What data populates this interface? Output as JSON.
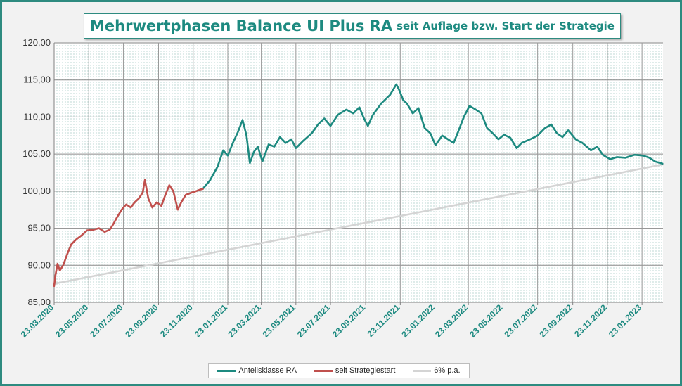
{
  "title": {
    "main": "Mehrwertphasen Balance UI Plus RA",
    "sub": "seit Auflage bzw. Start der Strategie"
  },
  "colors": {
    "frame": "#2e8b80",
    "fund": "#1d8a80",
    "start": "#c0504d",
    "trend": "#d4d4d4"
  },
  "chart_data": {
    "type": "line",
    "title": "Mehrwertphasen Balance UI Plus RA seit Auflage bzw. Start der Strategie",
    "xlabel": "",
    "ylabel": "",
    "ylim": [
      85,
      120
    ],
    "yticks": [
      "85,00",
      "90,00",
      "95,00",
      "100,00",
      "105,00",
      "110,00",
      "115,00",
      "120,00"
    ],
    "xticks": [
      "23.03.2020",
      "23.05.2020",
      "23.07.2020",
      "23.09.2020",
      "23.11.2020",
      "23.01.2021",
      "23.03.2021",
      "23.05.2021",
      "23.07.2021",
      "23.09.2021",
      "23.11.2021",
      "23.01.2022",
      "23.03.2022",
      "23.05.2022",
      "23.07.2022",
      "23.09.2022",
      "23.11.2022",
      "23.01.2023"
    ],
    "grid": true,
    "legend_position": "bottom",
    "series": [
      {
        "name": "Anteilsklasse RA",
        "points": [
          [
            "2020-12-10",
            100.3
          ],
          [
            "2020-12-23",
            101.5
          ],
          [
            "2021-01-05",
            103.3
          ],
          [
            "2021-01-15",
            105.5
          ],
          [
            "2021-01-23",
            104.8
          ],
          [
            "2021-02-01",
            106.5
          ],
          [
            "2021-02-10",
            108.0
          ],
          [
            "2021-02-18",
            109.6
          ],
          [
            "2021-02-25",
            107.5
          ],
          [
            "2021-03-03",
            103.8
          ],
          [
            "2021-03-10",
            105.3
          ],
          [
            "2021-03-17",
            106.0
          ],
          [
            "2021-03-25",
            104.0
          ],
          [
            "2021-04-05",
            106.3
          ],
          [
            "2021-04-15",
            106.0
          ],
          [
            "2021-04-25",
            107.3
          ],
          [
            "2021-05-05",
            106.5
          ],
          [
            "2021-05-15",
            107.0
          ],
          [
            "2021-05-23",
            105.8
          ],
          [
            "2021-06-05",
            106.8
          ],
          [
            "2021-06-20",
            107.8
          ],
          [
            "2021-07-01",
            109.0
          ],
          [
            "2021-07-12",
            109.8
          ],
          [
            "2021-07-23",
            108.8
          ],
          [
            "2021-08-05",
            110.3
          ],
          [
            "2021-08-20",
            111.0
          ],
          [
            "2021-09-01",
            110.5
          ],
          [
            "2021-09-12",
            111.3
          ],
          [
            "2021-09-20",
            109.8
          ],
          [
            "2021-09-27",
            108.8
          ],
          [
            "2021-10-05",
            110.2
          ],
          [
            "2021-10-20",
            111.8
          ],
          [
            "2021-11-05",
            113.0
          ],
          [
            "2021-11-16",
            114.4
          ],
          [
            "2021-11-22",
            113.5
          ],
          [
            "2021-11-28",
            112.3
          ],
          [
            "2021-12-05",
            111.8
          ],
          [
            "2021-12-15",
            110.5
          ],
          [
            "2021-12-25",
            111.2
          ],
          [
            "2022-01-05",
            108.5
          ],
          [
            "2022-01-15",
            107.8
          ],
          [
            "2022-01-24",
            106.2
          ],
          [
            "2022-02-05",
            107.5
          ],
          [
            "2022-02-15",
            107.0
          ],
          [
            "2022-02-25",
            106.5
          ],
          [
            "2022-03-05",
            108.0
          ],
          [
            "2022-03-15",
            110.0
          ],
          [
            "2022-03-25",
            111.5
          ],
          [
            "2022-04-05",
            111.0
          ],
          [
            "2022-04-15",
            110.5
          ],
          [
            "2022-04-25",
            108.5
          ],
          [
            "2022-05-05",
            107.8
          ],
          [
            "2022-05-15",
            107.0
          ],
          [
            "2022-05-25",
            107.6
          ],
          [
            "2022-06-05",
            107.2
          ],
          [
            "2022-06-16",
            105.8
          ],
          [
            "2022-06-25",
            106.5
          ],
          [
            "2022-07-10",
            107.0
          ],
          [
            "2022-07-23",
            107.5
          ],
          [
            "2022-08-05",
            108.5
          ],
          [
            "2022-08-16",
            109.0
          ],
          [
            "2022-08-26",
            107.8
          ],
          [
            "2022-09-05",
            107.3
          ],
          [
            "2022-09-15",
            108.2
          ],
          [
            "2022-09-28",
            107.0
          ],
          [
            "2022-10-10",
            106.5
          ],
          [
            "2022-10-25",
            105.5
          ],
          [
            "2022-11-05",
            106.0
          ],
          [
            "2022-11-15",
            104.9
          ],
          [
            "2022-11-28",
            104.3
          ],
          [
            "2022-12-10",
            104.6
          ],
          [
            "2022-12-25",
            104.5
          ],
          [
            "2023-01-10",
            104.9
          ],
          [
            "2023-01-25",
            104.8
          ],
          [
            "2023-02-05",
            104.5
          ],
          [
            "2023-02-15",
            104.0
          ],
          [
            "2023-02-28",
            103.7
          ]
        ]
      },
      {
        "name": "seit Strategiestart",
        "points": [
          [
            "2020-03-23",
            87.2
          ],
          [
            "2020-03-25",
            88.5
          ],
          [
            "2020-03-29",
            90.2
          ],
          [
            "2020-04-02",
            89.3
          ],
          [
            "2020-04-08",
            90.0
          ],
          [
            "2020-04-15",
            91.5
          ],
          [
            "2020-04-22",
            92.8
          ],
          [
            "2020-05-01",
            93.5
          ],
          [
            "2020-05-10",
            94.0
          ],
          [
            "2020-05-20",
            94.7
          ],
          [
            "2020-05-31",
            94.8
          ],
          [
            "2020-06-10",
            95.0
          ],
          [
            "2020-06-20",
            94.5
          ],
          [
            "2020-06-29",
            94.8
          ],
          [
            "2020-07-05",
            95.5
          ],
          [
            "2020-07-12",
            96.5
          ],
          [
            "2020-07-20",
            97.5
          ],
          [
            "2020-07-28",
            98.2
          ],
          [
            "2020-08-05",
            97.8
          ],
          [
            "2020-08-12",
            98.5
          ],
          [
            "2020-08-19",
            99.0
          ],
          [
            "2020-08-26",
            99.8
          ],
          [
            "2020-08-30",
            101.5
          ],
          [
            "2020-09-05",
            99.0
          ],
          [
            "2020-09-12",
            97.8
          ],
          [
            "2020-09-20",
            98.5
          ],
          [
            "2020-09-28",
            98.0
          ],
          [
            "2020-10-05",
            99.5
          ],
          [
            "2020-10-12",
            100.8
          ],
          [
            "2020-10-19",
            100.0
          ],
          [
            "2020-10-27",
            97.5
          ],
          [
            "2020-11-02",
            98.5
          ],
          [
            "2020-11-10",
            99.5
          ],
          [
            "2020-11-20",
            99.8
          ],
          [
            "2020-11-28",
            100.0
          ],
          [
            "2020-12-05",
            100.2
          ],
          [
            "2020-12-10",
            100.3
          ]
        ]
      },
      {
        "name": "6% p.a.",
        "points": [
          [
            "2020-03-23",
            87.5
          ],
          [
            "2023-03-01",
            103.6
          ]
        ]
      }
    ]
  }
}
